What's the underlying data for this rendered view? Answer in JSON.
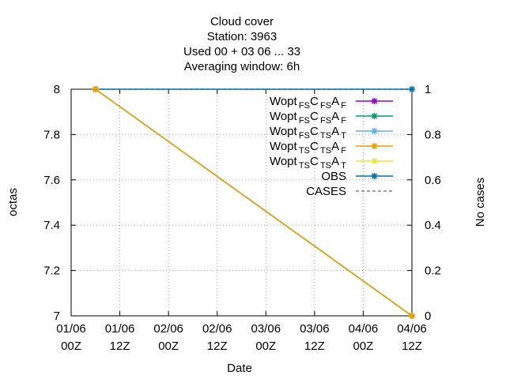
{
  "title_lines": [
    "Cloud cover",
    "Station:     3963",
    "Used  00 + 03 06 ... 33",
    "Averaging window:  6h"
  ],
  "colors": {
    "grid": "#a0a0a0",
    "purple": "#9400d3",
    "green": "#009e73",
    "lightblue": "#56b4e9",
    "orange": "#e69f00",
    "yellow": "#f0e442",
    "blue": "#0072b2",
    "cases": "#808080"
  },
  "chart_data": {
    "type": "line",
    "xlabel": "Date",
    "ylabel": "octas",
    "y2label": "No cases",
    "ylim": [
      7,
      8
    ],
    "y2lim": [
      0,
      1
    ],
    "grid": true,
    "legend_position": "top-right",
    "x_ticks": [
      {
        "line1": "01/06",
        "line2": "00Z",
        "hour": 0
      },
      {
        "line1": "01/06",
        "line2": "12Z",
        "hour": 12
      },
      {
        "line1": "02/06",
        "line2": "00Z",
        "hour": 24
      },
      {
        "line1": "02/06",
        "line2": "12Z",
        "hour": 36
      },
      {
        "line1": "03/06",
        "line2": "00Z",
        "hour": 48
      },
      {
        "line1": "03/06",
        "line2": "12Z",
        "hour": 60
      },
      {
        "line1": "04/06",
        "line2": "00Z",
        "hour": 72
      },
      {
        "line1": "04/06",
        "line2": "12Z",
        "hour": 84
      }
    ],
    "y_ticks": [
      "7",
      "7.2",
      "7.4",
      "7.6",
      "7.8",
      "8"
    ],
    "y2_ticks": [
      "0",
      "0.2",
      "0.4",
      "0.6",
      "0.8",
      "1"
    ],
    "series": [
      {
        "key": "s1",
        "base": "Wopt",
        "s1": "FS",
        "mid": "C",
        "s2": "FS",
        "end": "A",
        "s3": "F",
        "color": "purple",
        "marker": "plus",
        "axis": "y",
        "points": [
          [
            6,
            8
          ],
          [
            84,
            7
          ]
        ]
      },
      {
        "key": "s2",
        "base": "Wopt",
        "s1": "FS",
        "mid": "C",
        "s2": "FS",
        "end": "A",
        "s3": "F",
        "color": "green",
        "marker": "plus",
        "axis": "y",
        "points": [
          [
            6,
            8
          ],
          [
            84,
            7
          ]
        ]
      },
      {
        "key": "s3",
        "base": "Wopt",
        "s1": "FS",
        "mid": "C",
        "s2": "TS",
        "end": "A",
        "s3": "T",
        "color": "lightblue",
        "marker": "plus",
        "axis": "y",
        "points": [
          [
            6,
            8
          ],
          [
            84,
            7
          ]
        ]
      },
      {
        "key": "s4",
        "base": "Wopt",
        "s1": "TS",
        "mid": "C",
        "s2": "TS",
        "end": "A",
        "s3": "F",
        "color": "orange",
        "marker": "plus",
        "axis": "y",
        "points": [
          [
            6,
            8
          ],
          [
            84,
            7
          ]
        ]
      },
      {
        "key": "s5",
        "base": "Wopt",
        "s1": "TS",
        "mid": "C",
        "s2": "TS",
        "end": "A",
        "s3": "T",
        "color": "yellow",
        "marker": "plus",
        "axis": "y",
        "points": [
          [
            6,
            8
          ],
          [
            84,
            7
          ]
        ]
      },
      {
        "key": "obs",
        "label": "OBS",
        "color": "blue",
        "marker": "plus",
        "axis": "y",
        "points": [
          [
            6,
            8
          ],
          [
            84,
            8
          ]
        ]
      },
      {
        "key": "cases",
        "label": "CASES",
        "color": "cases",
        "marker": "none",
        "dashed": true,
        "axis": "y2",
        "points": [
          [
            6,
            1
          ],
          [
            84,
            1
          ]
        ]
      }
    ]
  }
}
